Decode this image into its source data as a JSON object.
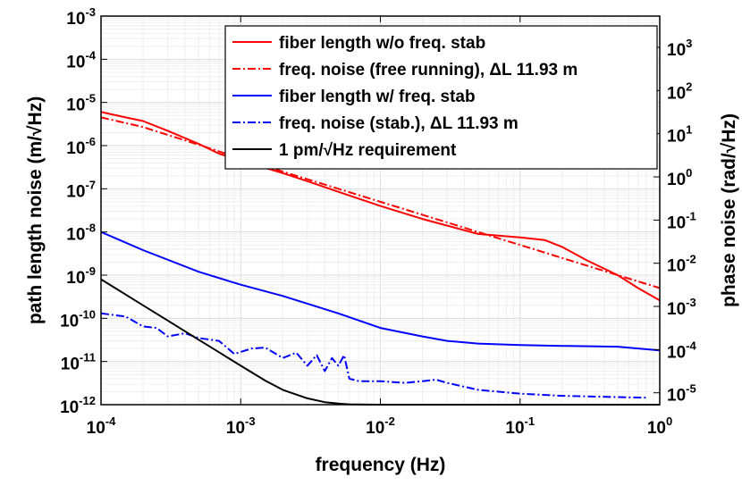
{
  "chart_data": {
    "type": "line",
    "xlabel": "frequency (Hz)",
    "ylabel": "path length noise (m/√Hz)",
    "y2label": "phase noise (rad/√Hz)",
    "xscale": "log",
    "yscale": "log",
    "xlim": [
      0.0001,
      1
    ],
    "ylim": [
      1e-12,
      0.001
    ],
    "y2lim": [
      5.31e-06,
      5310
    ],
    "grid": true,
    "legend_position": "top-right",
    "x_ticks": [
      {
        "value": 0.0001,
        "base": "10",
        "exp": "-4"
      },
      {
        "value": 0.001,
        "base": "10",
        "exp": "-3"
      },
      {
        "value": 0.01,
        "base": "10",
        "exp": "-2"
      },
      {
        "value": 0.1,
        "base": "10",
        "exp": "-1"
      },
      {
        "value": 1,
        "base": "10",
        "exp": "0"
      }
    ],
    "y_ticks": [
      {
        "value": 1e-12,
        "base": "10",
        "exp": "-12"
      },
      {
        "value": 1e-11,
        "base": "10",
        "exp": "-11"
      },
      {
        "value": 1e-10,
        "base": "10",
        "exp": "-10"
      },
      {
        "value": 1e-09,
        "base": "10",
        "exp": "-9"
      },
      {
        "value": 1e-08,
        "base": "10",
        "exp": "-8"
      },
      {
        "value": 1e-07,
        "base": "10",
        "exp": "-7"
      },
      {
        "value": 1e-06,
        "base": "10",
        "exp": "-6"
      },
      {
        "value": 1e-05,
        "base": "10",
        "exp": "-5"
      },
      {
        "value": 0.0001,
        "base": "10",
        "exp": "-4"
      },
      {
        "value": 0.001,
        "base": "10",
        "exp": "-3"
      }
    ],
    "y2_ticks": [
      {
        "value": 1e-05,
        "base": "10",
        "exp": "-5"
      },
      {
        "value": 0.0001,
        "base": "10",
        "exp": "-4"
      },
      {
        "value": 0.001,
        "base": "10",
        "exp": "-3"
      },
      {
        "value": 0.01,
        "base": "10",
        "exp": "-2"
      },
      {
        "value": 0.1,
        "base": "10",
        "exp": "-1"
      },
      {
        "value": 1,
        "base": "10",
        "exp": "0"
      },
      {
        "value": 10,
        "base": "10",
        "exp": "1"
      },
      {
        "value": 100,
        "base": "10",
        "exp": "2"
      },
      {
        "value": 1000,
        "base": "10",
        "exp": "3"
      }
    ],
    "series": [
      {
        "name": "fiber length w/o freq. stab",
        "color": "#ff0000",
        "dash": "solid",
        "x": [
          0.0001,
          0.00015,
          0.0002,
          0.0003,
          0.0005,
          0.0007,
          0.001,
          0.002,
          0.003,
          0.005,
          0.01,
          0.02,
          0.05,
          0.1,
          0.15,
          0.2,
          0.3,
          0.5,
          0.7,
          1
        ],
        "y": [
          6e-06,
          4.5e-06,
          3.7e-06,
          2.2e-06,
          1.1e-06,
          6.5e-07,
          4.5e-07,
          2.3e-07,
          1.5e-07,
          8.5e-08,
          4e-08,
          2e-08,
          9e-09,
          7.5e-09,
          6.5e-09,
          4.5e-09,
          2.2e-09,
          1e-09,
          5e-10,
          2.6e-10
        ]
      },
      {
        "name": "freq. noise (free running), ΔL 11.93 m",
        "color": "#ff0000",
        "dash": "dashdot",
        "x": [
          0.0001,
          0.0002,
          0.0005,
          0.001,
          0.002,
          0.005,
          0.01,
          0.02,
          0.05,
          0.1,
          0.2,
          0.5,
          1
        ],
        "y": [
          4.5e-06,
          2.7e-06,
          1.05e-06,
          5e-07,
          2.5e-07,
          1e-07,
          5e-08,
          2.5e-08,
          1e-08,
          5e-09,
          2.5e-09,
          1e-09,
          5e-10
        ]
      },
      {
        "name": "fiber length w/ freq. stab",
        "color": "#0000ff",
        "dash": "solid",
        "x": [
          0.0001,
          0.0002,
          0.0005,
          0.001,
          0.002,
          0.005,
          0.01,
          0.02,
          0.03,
          0.05,
          0.1,
          0.2,
          0.5,
          1
        ],
        "y": [
          1e-08,
          3.8e-09,
          1.2e-09,
          6e-10,
          3.3e-10,
          1.3e-10,
          6e-11,
          3.8e-11,
          3e-11,
          2.6e-11,
          2.4e-11,
          2.3e-11,
          2.2e-11,
          1.8e-11
        ]
      },
      {
        "name": "freq. noise (stab.), ΔL 11.93 m",
        "color": "#0000ff",
        "dash": "dashdot",
        "x": [
          0.0001,
          0.00015,
          0.0002,
          0.00025,
          0.0003,
          0.0004,
          0.0005,
          0.0007,
          0.0009,
          0.0012,
          0.0015,
          0.002,
          0.0025,
          0.003,
          0.0035,
          0.004,
          0.0045,
          0.005,
          0.0055,
          0.006,
          0.007,
          0.01,
          0.015,
          0.02,
          0.025,
          0.03,
          0.05,
          0.1,
          0.2,
          0.5,
          0.8
        ],
        "y": [
          1.3e-10,
          1.1e-10,
          6.5e-11,
          6e-11,
          3.8e-11,
          4.5e-11,
          3.5e-11,
          3e-11,
          1.5e-11,
          2e-11,
          2.1e-11,
          1.2e-11,
          1.6e-11,
          8e-12,
          1.4e-11,
          6e-12,
          1.2e-11,
          8e-12,
          1.4e-11,
          4e-12,
          3.5e-12,
          3.5e-12,
          3.2e-12,
          3.5e-12,
          3.8e-12,
          3.2e-12,
          2.2e-12,
          1.8e-12,
          1.6e-12,
          1.5e-12,
          1.45e-12
        ]
      },
      {
        "name": "1 pm/√Hz requirement",
        "color": "#000000",
        "dash": "solid",
        "x": [
          0.0001,
          0.00015,
          0.0002,
          0.0003,
          0.0005,
          0.0007,
          0.001,
          0.0015,
          0.002,
          0.003,
          0.004,
          0.005,
          0.006,
          0.008,
          0.01,
          0.1,
          1
        ],
        "y": [
          8e-10,
          3.55e-10,
          2e-10,
          8.9e-11,
          3.2e-11,
          1.64e-11,
          8e-12,
          3.6e-12,
          2.2e-12,
          1.4e-12,
          1.14e-12,
          1.06e-12,
          1.02e-12,
          1.005e-12,
          1e-12,
          1e-12,
          1e-12
        ]
      }
    ]
  }
}
